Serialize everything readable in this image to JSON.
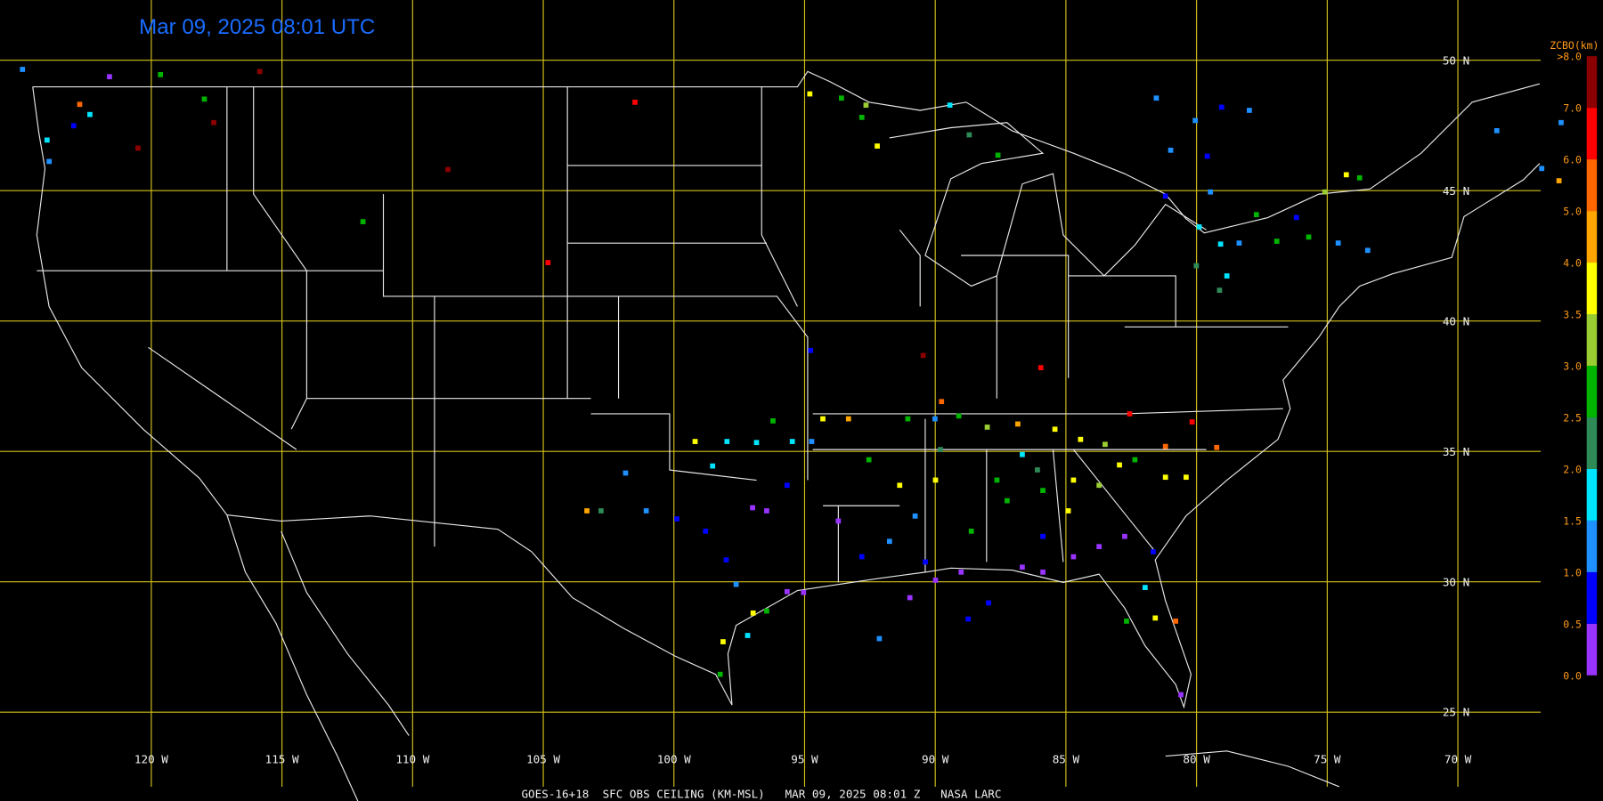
{
  "timestamp": "Mar 09, 2025 08:01 UTC",
  "footer": "GOES-16+18  SFC OBS CEILING (KM-MSL)   MAR 09, 2025 08:01 Z   NASA LARC",
  "lat_lines": [
    {
      "value": 50,
      "label": "50 N"
    },
    {
      "value": 45,
      "label": "45 N"
    },
    {
      "value": 40,
      "label": "40 N"
    },
    {
      "value": 35,
      "label": "35 N"
    },
    {
      "value": 30,
      "label": "30 N"
    },
    {
      "value": 25,
      "label": "25 N"
    }
  ],
  "lon_lines": [
    {
      "value": -120,
      "label": "120 W"
    },
    {
      "value": -115,
      "label": "115 W"
    },
    {
      "value": -110,
      "label": "110 W"
    },
    {
      "value": -105,
      "label": "105 W"
    },
    {
      "value": -100,
      "label": "100 W"
    },
    {
      "value": -95,
      "label": "95 W"
    },
    {
      "value": -90,
      "label": "90 W"
    },
    {
      "value": -85,
      "label": "85 W"
    },
    {
      "value": -80,
      "label": "80 W"
    },
    {
      "value": -75,
      "label": "75 W"
    },
    {
      "value": -70,
      "label": "70 W"
    }
  ],
  "colorbar": {
    "title": "ZCBO(km)",
    "ticks": [
      {
        "value": 0,
        "label": "0.0"
      },
      {
        "value": 0.5,
        "label": "0.5"
      },
      {
        "value": 1,
        "label": "1.0"
      },
      {
        "value": 1.5,
        "label": "1.5"
      },
      {
        "value": 2,
        "label": "2.0"
      },
      {
        "value": 2.5,
        "label": "2.5"
      },
      {
        "value": 3,
        "label": "3.0"
      },
      {
        "value": 3.5,
        "label": "3.5"
      },
      {
        "value": 4,
        "label": "4.0"
      },
      {
        "value": 5,
        "label": "5.0"
      },
      {
        "value": 6,
        "label": "6.0"
      },
      {
        "value": 7,
        "label": "7.0"
      },
      {
        "value": 8,
        "label": ">8.0"
      }
    ],
    "colors": [
      "#9933ff",
      "#0000ff",
      "#1e90ff",
      "#00e5ff",
      "#2e8b57",
      "#00b400",
      "#9acd32",
      "#ffff00",
      "#ffa500",
      "#ff6600",
      "#ff0000",
      "#8b0000"
    ]
  },
  "stations": [
    [
      -124.93,
      49.65,
      1.3
    ],
    [
      -123.91,
      46.12,
      1.3
    ],
    [
      -122.74,
      48.31,
      5.5
    ],
    [
      -122.35,
      47.92,
      1.8
    ],
    [
      -123.99,
      46.94,
      1.8
    ],
    [
      -122.97,
      47.49,
      0.8
    ],
    [
      -121.6,
      49.37,
      0.3
    ],
    [
      -119.65,
      49.45,
      2.8
    ],
    [
      -117.97,
      48.51,
      2.8
    ],
    [
      -115.85,
      49.57,
      7.5
    ],
    [
      -117.61,
      47.61,
      7.5
    ],
    [
      -120.51,
      46.63,
      7.5
    ],
    [
      -108.65,
      45.81,
      7.5
    ],
    [
      -111.9,
      43.81,
      2.8
    ],
    [
      -104.82,
      42.24,
      6.5
    ],
    [
      -101.49,
      48.39,
      6.5
    ],
    [
      -94.8,
      48.71,
      3.8
    ],
    [
      -93.59,
      48.55,
      2.8
    ],
    [
      -92.65,
      48.28,
      3.3
    ],
    [
      -92.81,
      47.81,
      2.8
    ],
    [
      -92.22,
      46.71,
      3.8
    ],
    [
      -89.44,
      48.28,
      1.8
    ],
    [
      -88.7,
      47.14,
      2.3
    ],
    [
      -87.6,
      46.36,
      2.8
    ],
    [
      -81.54,
      48.55,
      1.3
    ],
    [
      -79.04,
      48.2,
      0.8
    ],
    [
      -77.98,
      48.08,
      1.3
    ],
    [
      -80.05,
      47.69,
      1.3
    ],
    [
      -80.99,
      46.55,
      1.3
    ],
    [
      -79.59,
      46.32,
      0.8
    ],
    [
      -68.51,
      47.3,
      1.3
    ],
    [
      -66.05,
      47.61,
      1.3
    ],
    [
      -81.19,
      44.79,
      0.8
    ],
    [
      -79.47,
      44.95,
      1.3
    ],
    [
      -75.09,
      44.95,
      3.3
    ],
    [
      -74.27,
      45.61,
      3.8
    ],
    [
      -73.76,
      45.49,
      2.8
    ],
    [
      -77.71,
      44.08,
      2.8
    ],
    [
      -76.18,
      43.97,
      0.8
    ],
    [
      -75.71,
      43.22,
      2.8
    ],
    [
      -74.58,
      42.99,
      1.3
    ],
    [
      -79.08,
      42.95,
      1.8
    ],
    [
      -78.37,
      42.99,
      1.3
    ],
    [
      -76.93,
      43.06,
      2.8
    ],
    [
      -80.01,
      42.12,
      2.3
    ],
    [
      -78.84,
      41.73,
      1.8
    ],
    [
      -79.12,
      41.18,
      2.3
    ],
    [
      -73.45,
      42.71,
      1.3
    ],
    [
      -79.9,
      43.61,
      1.8
    ],
    [
      -66.13,
      45.38,
      4.5
    ],
    [
      -66.79,
      45.85,
      1.3
    ],
    [
      -94.77,
      38.87,
      0.8
    ],
    [
      -90.46,
      38.68,
      7.5
    ],
    [
      -89.76,
      36.91,
      5.5
    ],
    [
      -85.96,
      38.21,
      6.5
    ],
    [
      -82.56,
      36.44,
      6.5
    ],
    [
      -80.17,
      36.13,
      6.5
    ],
    [
      -79.23,
      35.15,
      5.5
    ],
    [
      -81.19,
      35.19,
      5.5
    ],
    [
      -101.85,
      34.17,
      1.3
    ],
    [
      -103.33,
      32.72,
      4.5
    ],
    [
      -102.79,
      32.72,
      2.3
    ],
    [
      -101.06,
      32.72,
      1.3
    ],
    [
      -99.19,
      35.38,
      3.8
    ],
    [
      -98.52,
      34.44,
      1.8
    ],
    [
      -97.97,
      35.38,
      1.8
    ],
    [
      -96.84,
      35.34,
      1.8
    ],
    [
      -96.21,
      36.17,
      2.8
    ],
    [
      -95.47,
      35.38,
      1.8
    ],
    [
      -94.73,
      35.38,
      1.3
    ],
    [
      -94.3,
      36.25,
      3.8
    ],
    [
      -93.32,
      36.25,
      4.5
    ],
    [
      -91.05,
      36.25,
      2.8
    ],
    [
      -90.01,
      36.25,
      1.3
    ],
    [
      -89.1,
      36.36,
      2.8
    ],
    [
      -88.01,
      35.93,
      3.3
    ],
    [
      -86.84,
      36.05,
      4.5
    ],
    [
      -85.42,
      35.85,
      3.8
    ],
    [
      -84.44,
      35.46,
      3.8
    ],
    [
      -83.5,
      35.27,
      3.3
    ],
    [
      -82.36,
      34.68,
      2.8
    ],
    [
      -99.89,
      32.41,
      0.8
    ],
    [
      -98.79,
      31.94,
      0.8
    ],
    [
      -98.0,
      30.84,
      0.8
    ],
    [
      -96.99,
      32.84,
      0.3
    ],
    [
      -96.45,
      32.72,
      0.3
    ],
    [
      -95.67,
      33.7,
      0.8
    ],
    [
      -97.62,
      29.9,
      1.3
    ],
    [
      -95.67,
      29.62,
      0.3
    ],
    [
      -95.04,
      29.59,
      0.3
    ],
    [
      -96.97,
      28.8,
      3.8
    ],
    [
      -96.45,
      28.88,
      2.8
    ],
    [
      -97.18,
      27.94,
      1.8
    ],
    [
      -98.12,
      27.7,
      3.8
    ],
    [
      -98.23,
      26.45,
      2.8
    ],
    [
      -93.71,
      32.33,
      0.3
    ],
    [
      -92.81,
      30.96,
      0.8
    ],
    [
      -91.75,
      31.55,
      1.3
    ],
    [
      -90.38,
      30.76,
      0.8
    ],
    [
      -89.99,
      30.06,
      0.3
    ],
    [
      -90.97,
      29.39,
      0.3
    ],
    [
      -89.01,
      30.37,
      0.3
    ],
    [
      -87.96,
      29.19,
      0.8
    ],
    [
      -88.74,
      28.57,
      0.8
    ],
    [
      -92.14,
      27.82,
      1.3
    ],
    [
      -86.67,
      30.56,
      0.3
    ],
    [
      -85.88,
      30.37,
      0.3
    ],
    [
      -84.71,
      30.96,
      0.3
    ],
    [
      -83.73,
      31.35,
      0.3
    ],
    [
      -82.75,
      31.74,
      0.3
    ],
    [
      -81.66,
      31.15,
      0.8
    ],
    [
      -81.97,
      29.78,
      1.8
    ],
    [
      -81.58,
      28.61,
      3.8
    ],
    [
      -80.8,
      28.49,
      5.5
    ],
    [
      -80.6,
      25.67,
      0.3
    ],
    [
      -82.68,
      28.49,
      2.8
    ],
    [
      -88.62,
      31.94,
      2.8
    ],
    [
      -87.64,
      33.9,
      2.8
    ],
    [
      -87.25,
      33.11,
      2.8
    ],
    [
      -85.88,
      33.5,
      2.8
    ],
    [
      -84.71,
      33.9,
      3.8
    ],
    [
      -84.91,
      32.72,
      3.8
    ],
    [
      -83.73,
      33.7,
      3.3
    ],
    [
      -82.95,
      34.48,
      3.8
    ],
    [
      -81.19,
      34.01,
      3.8
    ],
    [
      -80.4,
      34.01,
      3.8
    ],
    [
      -86.67,
      34.88,
      1.8
    ],
    [
      -86.09,
      34.29,
      2.3
    ],
    [
      -92.54,
      34.68,
      2.8
    ],
    [
      -91.36,
      33.7,
      3.8
    ],
    [
      -89.8,
      35.07,
      2.3
    ],
    [
      -89.99,
      33.9,
      3.8
    ],
    [
      -90.77,
      32.52,
      1.3
    ],
    [
      -85.88,
      31.74,
      0.8
    ]
  ]
}
